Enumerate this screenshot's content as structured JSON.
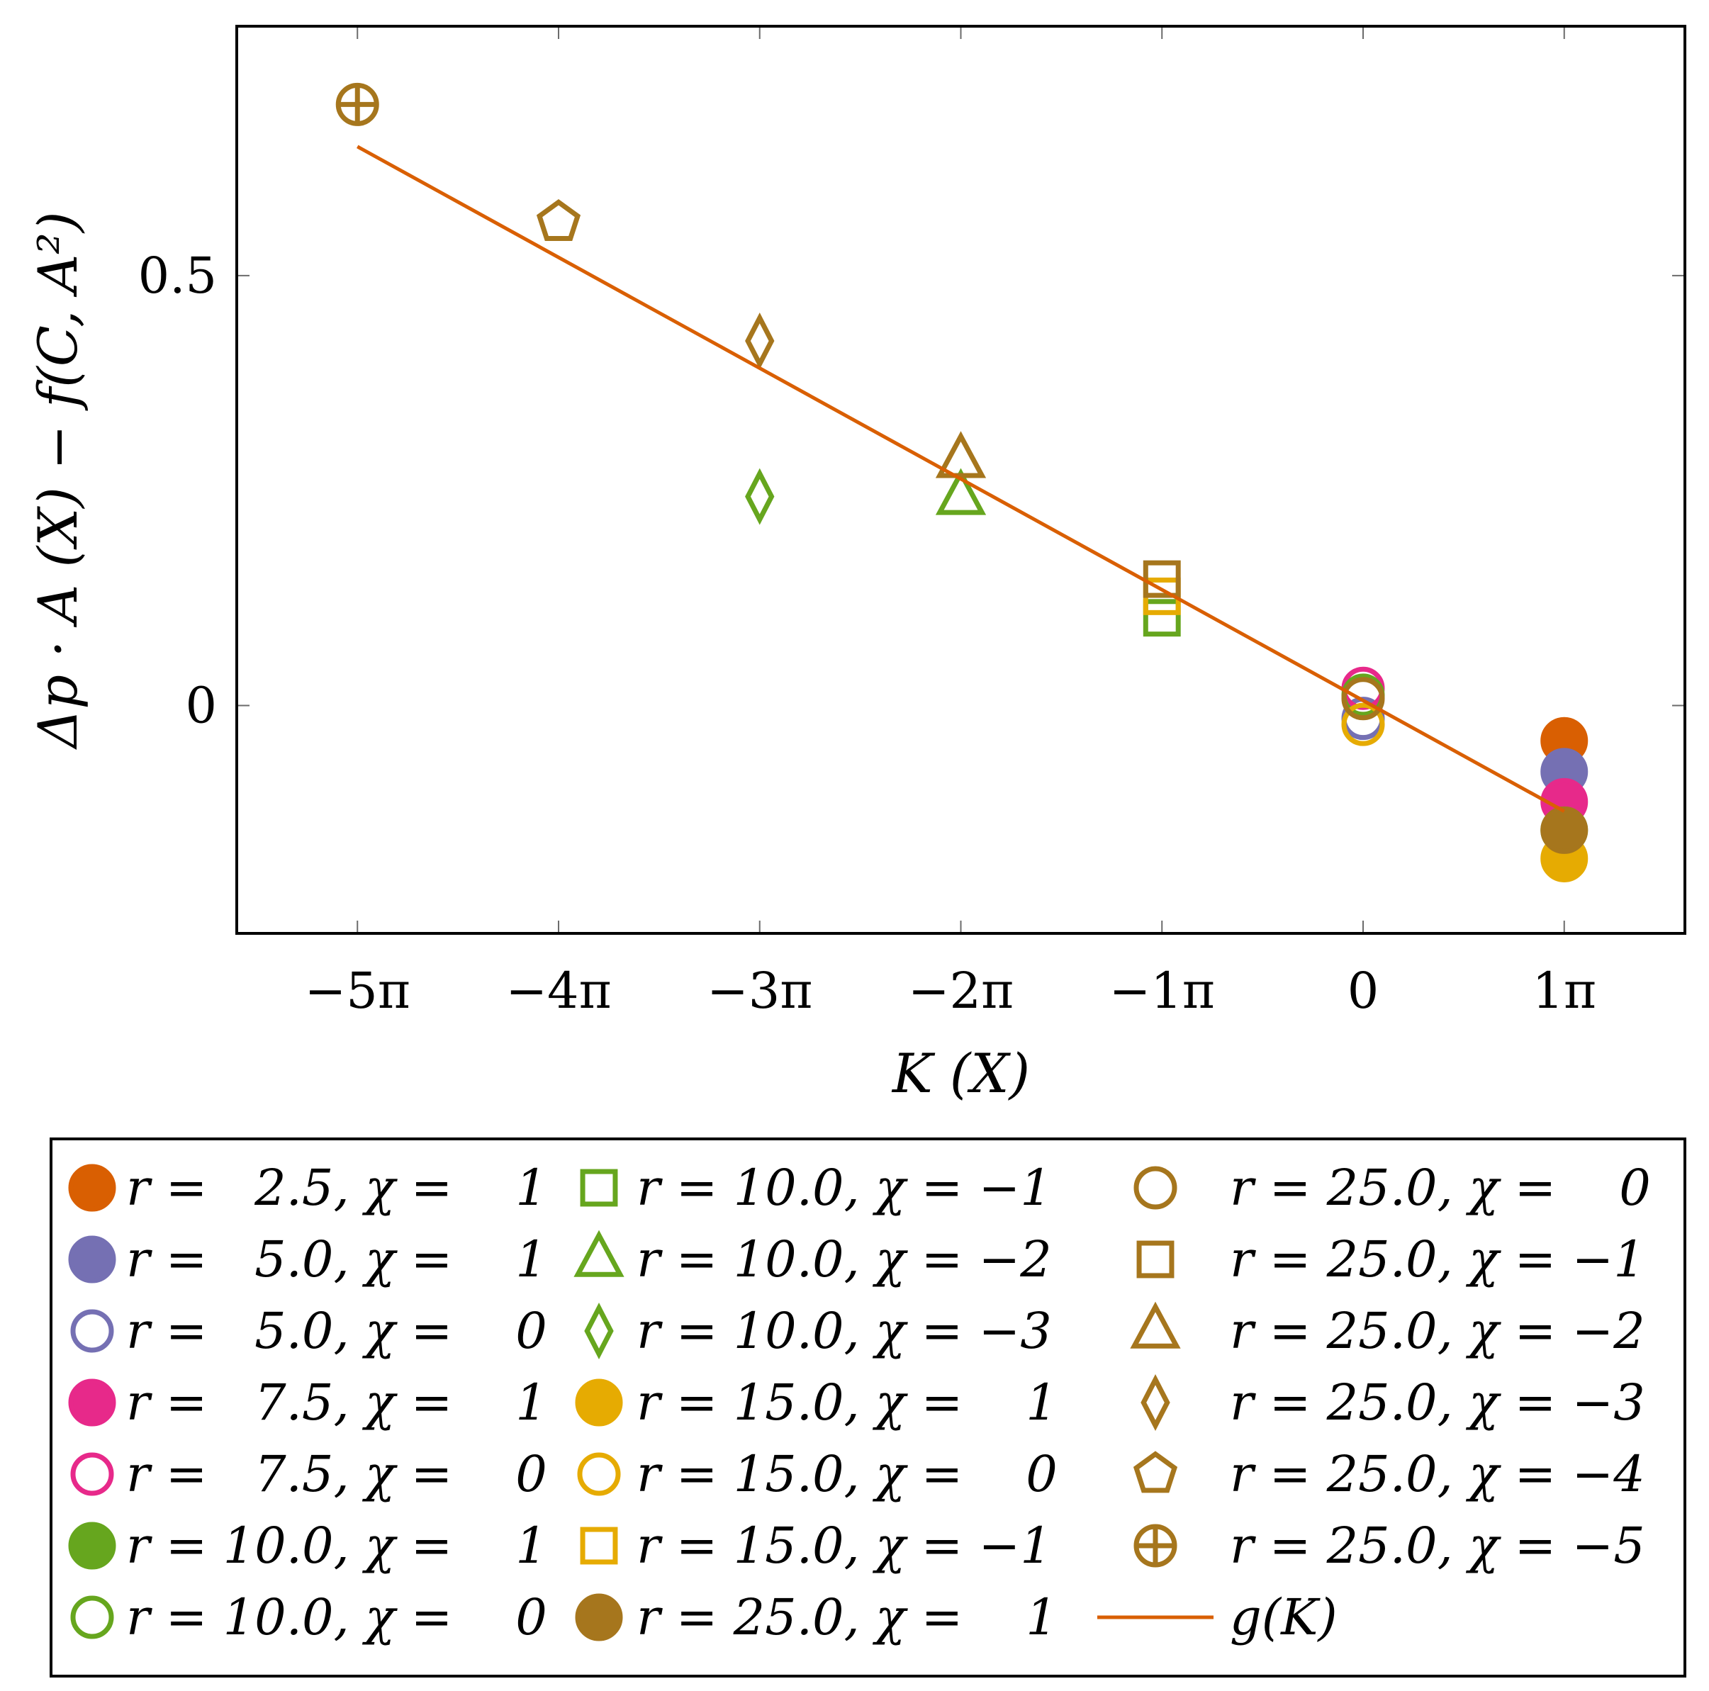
{
  "chart_data": {
    "type": "scatter",
    "title": "",
    "xlabel": "K (X)",
    "ylabel": "Δp · A (X) − f(C, A²)",
    "xlim": [
      -5.6,
      1.6
    ],
    "ylim": [
      -0.265,
      0.79
    ],
    "x_ticks": [
      {
        "value": -5,
        "label": "−5π"
      },
      {
        "value": -4,
        "label": "−4π"
      },
      {
        "value": -3,
        "label": "−3π"
      },
      {
        "value": -2,
        "label": "−2π"
      },
      {
        "value": -1,
        "label": "−1π"
      },
      {
        "value": 0,
        "label": "0"
      },
      {
        "value": 1,
        "label": "1π"
      }
    ],
    "y_ticks": [
      {
        "value": 0,
        "label": "0"
      },
      {
        "value": 0.5,
        "label": "0.5"
      }
    ],
    "grid": false,
    "legend_position": "bottom",
    "series": [
      {
        "name": "r =   2.5, χ =    1",
        "color": "#d95f02",
        "marker": "circle",
        "filled": true,
        "points": [
          [
            1,
            -0.041
          ]
        ]
      },
      {
        "name": "r =   5.0, χ =    1",
        "color": "#7570b3",
        "marker": "circle",
        "filled": true,
        "points": [
          [
            1,
            -0.077
          ]
        ]
      },
      {
        "name": "r =   5.0, χ =    0",
        "color": "#7570b3",
        "marker": "circle",
        "filled": false,
        "points": [
          [
            0,
            -0.015
          ]
        ]
      },
      {
        "name": "r =   7.5, χ =    1",
        "color": "#e7298a",
        "marker": "circle",
        "filled": true,
        "points": [
          [
            1,
            -0.112
          ]
        ]
      },
      {
        "name": "r =   7.5, χ =    0",
        "color": "#e7298a",
        "marker": "circle",
        "filled": false,
        "points": [
          [
            0,
            0.02
          ]
        ]
      },
      {
        "name": "r = 10.0, χ =    1",
        "color": "#66a61e",
        "marker": "circle",
        "filled": true,
        "points": [
          [
            1,
            -0.145
          ]
        ]
      },
      {
        "name": "r = 10.0, χ =    0",
        "color": "#66a61e",
        "marker": "circle",
        "filled": false,
        "points": [
          [
            0,
            0.012
          ]
        ]
      },
      {
        "name": "r = 10.0, χ = −1",
        "color": "#66a61e",
        "marker": "square",
        "filled": false,
        "points": [
          [
            -1,
            0.102
          ]
        ]
      },
      {
        "name": "r = 10.0, χ = −2",
        "color": "#66a61e",
        "marker": "triangle",
        "filled": false,
        "points": [
          [
            -2,
            0.242
          ]
        ]
      },
      {
        "name": "r = 10.0, χ = −3",
        "color": "#66a61e",
        "marker": "diamond",
        "filled": false,
        "points": [
          [
            -3,
            0.243
          ]
        ]
      },
      {
        "name": "r = 15.0, χ =    1",
        "color": "#e6ab02",
        "marker": "circle",
        "filled": true,
        "points": [
          [
            1,
            -0.178
          ]
        ]
      },
      {
        "name": "r = 15.0, χ =    0",
        "color": "#e6ab02",
        "marker": "circle",
        "filled": false,
        "points": [
          [
            0,
            -0.022
          ]
        ]
      },
      {
        "name": "r = 15.0, χ = −1",
        "color": "#e6ab02",
        "marker": "square",
        "filled": false,
        "points": [
          [
            -1,
            0.127
          ]
        ]
      },
      {
        "name": "r = 25.0, χ =    1",
        "color": "#a6761d",
        "marker": "circle",
        "filled": true,
        "points": [
          [
            1,
            -0.145
          ]
        ]
      },
      {
        "name": "r = 25.0, χ =    0",
        "color": "#a6761d",
        "marker": "circle",
        "filled": false,
        "points": [
          [
            0,
            0.008
          ]
        ]
      },
      {
        "name": "r = 25.0, χ = −1",
        "color": "#a6761d",
        "marker": "square",
        "filled": false,
        "points": [
          [
            -1,
            0.147
          ]
        ]
      },
      {
        "name": "r = 25.0, χ = −2",
        "color": "#a6761d",
        "marker": "triangle",
        "filled": false,
        "points": [
          [
            -2,
            0.285
          ]
        ]
      },
      {
        "name": "r = 25.0, χ = −3",
        "color": "#a6761d",
        "marker": "diamond",
        "filled": false,
        "points": [
          [
            -3,
            0.424
          ]
        ]
      },
      {
        "name": "r = 25.0, χ = −4",
        "color": "#a6761d",
        "marker": "pentagon",
        "filled": false,
        "points": [
          [
            -4,
            0.562
          ]
        ]
      },
      {
        "name": "r = 25.0, χ = −5",
        "color": "#a6761d",
        "marker": "oplus",
        "filled": false,
        "points": [
          [
            -5,
            0.699
          ]
        ]
      }
    ],
    "fit_line": {
      "name": "g(K)",
      "color": "#d95f02",
      "x": [
        -5,
        1
      ],
      "y": [
        0.65,
        -0.123
      ]
    }
  }
}
